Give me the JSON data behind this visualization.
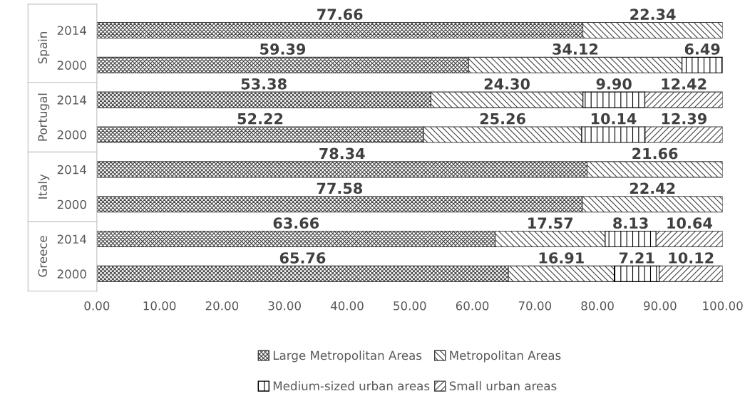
{
  "chart_data": {
    "type": "bar",
    "orientation": "horizontal",
    "stacked": true,
    "data_labels": true,
    "legend": "bottom",
    "grid": false,
    "categories": [
      "2014",
      "2000",
      "2014",
      "2000",
      "2014",
      "2000",
      "2014",
      "2000"
    ],
    "annotations": [
      "Spain",
      "Portugal",
      "Italy",
      "Greece"
    ],
    "xlim": [
      0,
      100
    ],
    "xticks": [
      {
        "value": 0,
        "label": "0.00"
      },
      {
        "value": 10,
        "label": "10.00"
      },
      {
        "value": 20,
        "label": "20.00"
      },
      {
        "value": 30,
        "label": "30.00"
      },
      {
        "value": 40,
        "label": "40.00"
      },
      {
        "value": 50,
        "label": "50.00"
      },
      {
        "value": 60,
        "label": "60.00"
      },
      {
        "value": 70,
        "label": "70.00"
      },
      {
        "value": 80,
        "label": "80.00"
      },
      {
        "value": 90,
        "label": "90.00"
      },
      {
        "value": 100,
        "label": "100.00"
      }
    ],
    "series": [
      {
        "name": "Large Metropolitan Areas",
        "color": "#404040",
        "values": [
          77.66,
          59.39,
          53.38,
          52.22,
          78.34,
          77.58,
          63.66,
          65.76
        ],
        "value_labels": [
          "77.66",
          "59.39",
          "53.38",
          "52.22",
          "78.34",
          "77.58",
          "63.66",
          "65.76"
        ]
      },
      {
        "name": "Metropolitan Areas",
        "color": "#404040",
        "values": [
          22.34,
          34.12,
          24.3,
          25.26,
          21.66,
          22.42,
          17.57,
          16.91
        ],
        "value_labels": [
          "22.34",
          "34.12",
          "24.30",
          "25.26",
          "21.66",
          "22.42",
          "17.57",
          "16.91"
        ]
      },
      {
        "name": "Medium-sized urban areas",
        "color": "#000000",
        "values": [
          null,
          6.49,
          9.9,
          10.14,
          null,
          null,
          8.13,
          7.21
        ],
        "value_labels": [
          null,
          "6.49",
          "9.90",
          "10.14",
          null,
          null,
          "8.13",
          "7.21"
        ]
      },
      {
        "name": "Small urban areas",
        "color": "#404040",
        "values": [
          null,
          null,
          12.42,
          12.39,
          null,
          null,
          10.64,
          10.12
        ],
        "value_labels": [
          null,
          null,
          "12.42",
          "12.39",
          null,
          null,
          "10.64",
          "10.12"
        ]
      }
    ]
  }
}
